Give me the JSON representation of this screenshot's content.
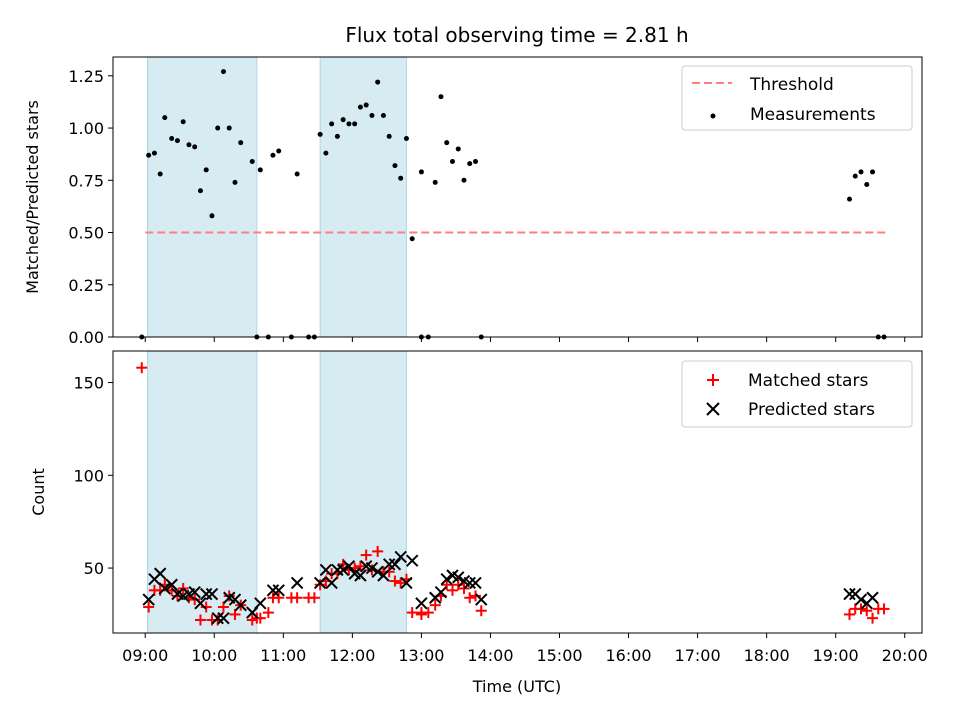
{
  "chart_data": [
    {
      "type": "scatter",
      "title": "Flux total observing time = 2.81 h",
      "ylabel": "Matched/Predicted stars",
      "xlim": [
        "08:32",
        "20:15"
      ],
      "ylim": [
        0,
        1.34
      ],
      "yticks": [
        "0.00",
        "0.25",
        "0.50",
        "0.75",
        "1.00",
        "1.25"
      ],
      "shaded_intervals": [
        [
          "09:02",
          "10:37"
        ],
        [
          "11:32",
          "12:47"
        ]
      ],
      "shade_color": "#add8e6",
      "threshold": {
        "name": "Threshold",
        "y": 0.5,
        "x_start": "09:00",
        "x_end": "19:45",
        "color": "#ff7f7f"
      },
      "legend_position": "upper right",
      "series": [
        {
          "name": "Measurements",
          "color": "#000000",
          "points": [
            {
              "x": "08:57",
              "y": 0.0
            },
            {
              "x": "09:03",
              "y": 0.87
            },
            {
              "x": "09:08",
              "y": 0.88
            },
            {
              "x": "09:13",
              "y": 0.78
            },
            {
              "x": "09:17",
              "y": 1.05
            },
            {
              "x": "09:23",
              "y": 0.95
            },
            {
              "x": "09:28",
              "y": 0.94
            },
            {
              "x": "09:33",
              "y": 1.03
            },
            {
              "x": "09:38",
              "y": 0.92
            },
            {
              "x": "09:43",
              "y": 0.91
            },
            {
              "x": "09:48",
              "y": 0.7
            },
            {
              "x": "09:53",
              "y": 0.8
            },
            {
              "x": "09:58",
              "y": 0.58
            },
            {
              "x": "10:03",
              "y": 1.0
            },
            {
              "x": "10:08",
              "y": 1.27
            },
            {
              "x": "10:13",
              "y": 1.0
            },
            {
              "x": "10:18",
              "y": 0.74
            },
            {
              "x": "10:23",
              "y": 0.93
            },
            {
              "x": "10:33",
              "y": 0.84
            },
            {
              "x": "10:37",
              "y": 0.0
            },
            {
              "x": "10:40",
              "y": 0.8
            },
            {
              "x": "10:47",
              "y": 0.0
            },
            {
              "x": "10:51",
              "y": 0.87
            },
            {
              "x": "10:56",
              "y": 0.89
            },
            {
              "x": "11:07",
              "y": 0.0
            },
            {
              "x": "11:12",
              "y": 0.78
            },
            {
              "x": "11:22",
              "y": 0.0
            },
            {
              "x": "11:27",
              "y": 0.0
            },
            {
              "x": "11:32",
              "y": 0.97
            },
            {
              "x": "11:37",
              "y": 0.88
            },
            {
              "x": "11:42",
              "y": 1.02
            },
            {
              "x": "11:47",
              "y": 0.96
            },
            {
              "x": "11:52",
              "y": 1.04
            },
            {
              "x": "11:57",
              "y": 1.02
            },
            {
              "x": "12:02",
              "y": 1.02
            },
            {
              "x": "12:07",
              "y": 1.1
            },
            {
              "x": "12:12",
              "y": 1.11
            },
            {
              "x": "12:17",
              "y": 1.06
            },
            {
              "x": "12:22",
              "y": 1.22
            },
            {
              "x": "12:27",
              "y": 1.06
            },
            {
              "x": "12:32",
              "y": 0.96
            },
            {
              "x": "12:37",
              "y": 0.82
            },
            {
              "x": "12:42",
              "y": 0.76
            },
            {
              "x": "12:47",
              "y": 0.95
            },
            {
              "x": "12:52",
              "y": 0.47
            },
            {
              "x": "13:00",
              "y": 0.79
            },
            {
              "x": "13:00",
              "y": 0.0
            },
            {
              "x": "13:06",
              "y": 0.0
            },
            {
              "x": "13:12",
              "y": 0.74
            },
            {
              "x": "13:17",
              "y": 1.15
            },
            {
              "x": "13:22",
              "y": 0.93
            },
            {
              "x": "13:27",
              "y": 0.84
            },
            {
              "x": "13:32",
              "y": 0.9
            },
            {
              "x": "13:37",
              "y": 0.75
            },
            {
              "x": "13:42",
              "y": 0.83
            },
            {
              "x": "13:47",
              "y": 0.84
            },
            {
              "x": "13:52",
              "y": 0.0
            },
            {
              "x": "19:12",
              "y": 0.66
            },
            {
              "x": "19:17",
              "y": 0.77
            },
            {
              "x": "19:22",
              "y": 0.79
            },
            {
              "x": "19:27",
              "y": 0.73
            },
            {
              "x": "19:32",
              "y": 0.79
            },
            {
              "x": "19:37",
              "y": 0.0
            },
            {
              "x": "19:42",
              "y": 0.0
            }
          ]
        }
      ]
    },
    {
      "type": "scatter",
      "xlabel": "Time (UTC)",
      "ylabel": "Count",
      "xlim": [
        "08:32",
        "20:15"
      ],
      "ylim": [
        15,
        167
      ],
      "yticks": [
        "50",
        "100",
        "150"
      ],
      "xticks": [
        "09:00",
        "10:00",
        "11:00",
        "12:00",
        "13:00",
        "14:00",
        "15:00",
        "16:00",
        "17:00",
        "18:00",
        "19:00",
        "20:00"
      ],
      "shaded_intervals": [
        [
          "09:02",
          "10:37"
        ],
        [
          "11:32",
          "12:47"
        ]
      ],
      "shade_color": "#add8e6",
      "legend_position": "upper right",
      "series": [
        {
          "name": "Matched stars",
          "marker": "plus",
          "color": "#ff0000",
          "points": [
            {
              "x": "08:57",
              "y": 158
            },
            {
              "x": "09:03",
              "y": 29
            },
            {
              "x": "09:08",
              "y": 38
            },
            {
              "x": "09:13",
              "y": 38
            },
            {
              "x": "09:17",
              "y": 41
            },
            {
              "x": "09:23",
              "y": 38
            },
            {
              "x": "09:28",
              "y": 35
            },
            {
              "x": "09:33",
              "y": 39
            },
            {
              "x": "09:38",
              "y": 34
            },
            {
              "x": "09:43",
              "y": 33
            },
            {
              "x": "09:48",
              "y": 22
            },
            {
              "x": "09:53",
              "y": 29
            },
            {
              "x": "09:58",
              "y": 22
            },
            {
              "x": "10:03",
              "y": 22
            },
            {
              "x": "10:08",
              "y": 29
            },
            {
              "x": "10:13",
              "y": 35
            },
            {
              "x": "10:18",
              "y": 25
            },
            {
              "x": "10:23",
              "y": 30
            },
            {
              "x": "10:33",
              "y": 22
            },
            {
              "x": "10:37",
              "y": 23
            },
            {
              "x": "10:40",
              "y": 23
            },
            {
              "x": "10:47",
              "y": 26
            },
            {
              "x": "10:51",
              "y": 34
            },
            {
              "x": "10:56",
              "y": 34
            },
            {
              "x": "11:07",
              "y": 34
            },
            {
              "x": "11:12",
              "y": 34
            },
            {
              "x": "11:22",
              "y": 34
            },
            {
              "x": "11:27",
              "y": 34
            },
            {
              "x": "11:32",
              "y": 41
            },
            {
              "x": "11:37",
              "y": 43
            },
            {
              "x": "11:42",
              "y": 47
            },
            {
              "x": "11:47",
              "y": 47
            },
            {
              "x": "11:52",
              "y": 52
            },
            {
              "x": "11:57",
              "y": 49
            },
            {
              "x": "12:02",
              "y": 50
            },
            {
              "x": "12:07",
              "y": 51
            },
            {
              "x": "12:12",
              "y": 57
            },
            {
              "x": "12:17",
              "y": 49
            },
            {
              "x": "12:22",
              "y": 59
            },
            {
              "x": "12:27",
              "y": 48
            },
            {
              "x": "12:32",
              "y": 48
            },
            {
              "x": "12:37",
              "y": 43
            },
            {
              "x": "12:42",
              "y": 42
            },
            {
              "x": "12:47",
              "y": 44
            },
            {
              "x": "12:52",
              "y": 26
            },
            {
              "x": "13:00",
              "y": 26
            },
            {
              "x": "13:00",
              "y": 25
            },
            {
              "x": "13:06",
              "y": 26
            },
            {
              "x": "13:12",
              "y": 30
            },
            {
              "x": "13:17",
              "y": 35
            },
            {
              "x": "13:22",
              "y": 41
            },
            {
              "x": "13:27",
              "y": 38
            },
            {
              "x": "13:32",
              "y": 41
            },
            {
              "x": "13:37",
              "y": 39
            },
            {
              "x": "13:42",
              "y": 34
            },
            {
              "x": "13:47",
              "y": 35
            },
            {
              "x": "13:52",
              "y": 27
            },
            {
              "x": "19:12",
              "y": 25
            },
            {
              "x": "19:17",
              "y": 28
            },
            {
              "x": "19:22",
              "y": 28
            },
            {
              "x": "19:27",
              "y": 27
            },
            {
              "x": "19:32",
              "y": 23
            },
            {
              "x": "19:37",
              "y": 28
            },
            {
              "x": "19:42",
              "y": 28
            }
          ]
        },
        {
          "name": "Predicted stars",
          "marker": "x",
          "color": "#000000",
          "points": [
            {
              "x": "09:03",
              "y": 33
            },
            {
              "x": "09:08",
              "y": 44
            },
            {
              "x": "09:13",
              "y": 47
            },
            {
              "x": "09:17",
              "y": 39
            },
            {
              "x": "09:23",
              "y": 41
            },
            {
              "x": "09:28",
              "y": 36
            },
            {
              "x": "09:33",
              "y": 35
            },
            {
              "x": "09:38",
              "y": 36
            },
            {
              "x": "09:43",
              "y": 37
            },
            {
              "x": "09:48",
              "y": 31
            },
            {
              "x": "09:53",
              "y": 36
            },
            {
              "x": "09:58",
              "y": 36
            },
            {
              "x": "10:03",
              "y": 23
            },
            {
              "x": "10:08",
              "y": 23
            },
            {
              "x": "10:13",
              "y": 34
            },
            {
              "x": "10:18",
              "y": 33
            },
            {
              "x": "10:23",
              "y": 30
            },
            {
              "x": "10:33",
              "y": 26
            },
            {
              "x": "10:40",
              "y": 31
            },
            {
              "x": "10:51",
              "y": 38
            },
            {
              "x": "10:56",
              "y": 38
            },
            {
              "x": "11:12",
              "y": 42
            },
            {
              "x": "11:32",
              "y": 42
            },
            {
              "x": "11:37",
              "y": 49
            },
            {
              "x": "11:42",
              "y": 42
            },
            {
              "x": "11:47",
              "y": 49
            },
            {
              "x": "11:52",
              "y": 49
            },
            {
              "x": "11:57",
              "y": 51
            },
            {
              "x": "12:02",
              "y": 47
            },
            {
              "x": "12:07",
              "y": 46
            },
            {
              "x": "12:12",
              "y": 51
            },
            {
              "x": "12:17",
              "y": 50
            },
            {
              "x": "12:22",
              "y": 48
            },
            {
              "x": "12:27",
              "y": 46
            },
            {
              "x": "12:32",
              "y": 52
            },
            {
              "x": "12:37",
              "y": 52
            },
            {
              "x": "12:42",
              "y": 56
            },
            {
              "x": "12:47",
              "y": 42
            },
            {
              "x": "12:52",
              "y": 54
            },
            {
              "x": "13:00",
              "y": 31
            },
            {
              "x": "13:12",
              "y": 34
            },
            {
              "x": "13:17",
              "y": 37
            },
            {
              "x": "13:22",
              "y": 44
            },
            {
              "x": "13:27",
              "y": 46
            },
            {
              "x": "13:32",
              "y": 45
            },
            {
              "x": "13:37",
              "y": 43
            },
            {
              "x": "13:42",
              "y": 42
            },
            {
              "x": "13:47",
              "y": 42
            },
            {
              "x": "13:52",
              "y": 33
            },
            {
              "x": "19:12",
              "y": 36
            },
            {
              "x": "19:17",
              "y": 36
            },
            {
              "x": "19:22",
              "y": 33
            },
            {
              "x": "19:27",
              "y": 31
            },
            {
              "x": "19:32",
              "y": 34
            }
          ]
        }
      ]
    }
  ]
}
